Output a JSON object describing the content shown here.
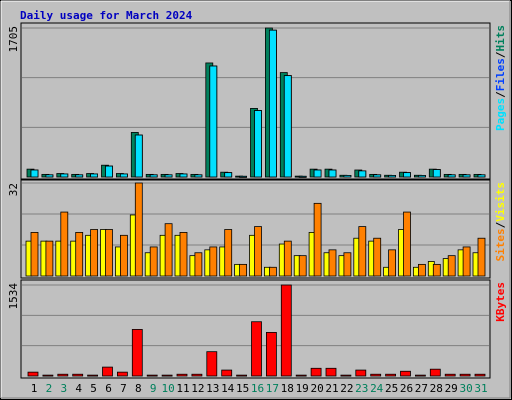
{
  "title": "Daily usage for March 2024",
  "legend_separator": "/",
  "chart_data": [
    {
      "type": "bar",
      "series": [
        {
          "name": "Hits",
          "color": "#00805c",
          "values": [
            90,
            30,
            40,
            30,
            40,
            135,
            40,
            510,
            30,
            30,
            40,
            30,
            1305,
            55,
            10,
            785,
            1705,
            1195,
            10,
            90,
            90,
            20,
            80,
            30,
            20,
            55,
            20,
            90,
            30,
            30,
            30
          ]
        },
        {
          "name": "Files",
          "color": "#0040ff",
          "values": [
            80,
            25,
            35,
            25,
            35,
            125,
            35,
            480,
            25,
            25,
            35,
            25,
            1270,
            50,
            8,
            760,
            1680,
            1160,
            8,
            80,
            80,
            18,
            70,
            25,
            18,
            50,
            18,
            85,
            25,
            25,
            25
          ]
        },
        {
          "name": "Pages",
          "color": "#00e0ff",
          "values": [
            80,
            25,
            35,
            25,
            35,
            125,
            35,
            480,
            25,
            25,
            35,
            25,
            1270,
            50,
            8,
            760,
            1680,
            1160,
            8,
            80,
            80,
            18,
            70,
            25,
            18,
            50,
            18,
            85,
            25,
            25,
            25
          ]
        }
      ],
      "ylim": [
        0,
        1705
      ],
      "yticks": [
        1705
      ],
      "grid_lines": 3
    },
    {
      "type": "bar",
      "series": [
        {
          "name": "Visits",
          "color": "#ffff00",
          "values": [
            12,
            12,
            12,
            12,
            14,
            16,
            10,
            21,
            8,
            14,
            14,
            7,
            9,
            10,
            4,
            14,
            3,
            11,
            7,
            15,
            8,
            7,
            13,
            12,
            3,
            16,
            3,
            5,
            6,
            9,
            8
          ]
        },
        {
          "name": "Sites",
          "color": "#ff8000",
          "values": [
            15,
            12,
            22,
            15,
            16,
            16,
            14,
            32,
            10,
            18,
            15,
            8,
            10,
            16,
            4,
            17,
            3,
            12,
            7,
            25,
            9,
            8,
            17,
            13,
            9,
            22,
            4,
            4,
            7,
            10,
            13
          ]
        }
      ],
      "ylim": [
        0,
        32
      ],
      "yticks": [
        32
      ],
      "grid_lines": 3
    },
    {
      "type": "bar",
      "categories": [
        "1",
        "2",
        "3",
        "4",
        "5",
        "6",
        "7",
        "8",
        "9",
        "10",
        "11",
        "12",
        "13",
        "14",
        "15",
        "16",
        "17",
        "18",
        "19",
        "20",
        "21",
        "22",
        "23",
        "24",
        "25",
        "26",
        "27",
        "28",
        "29",
        "30",
        "31"
      ],
      "category_colors": [
        "#000000",
        "#00805c",
        "#00805c",
        "#000000",
        "#000000",
        "#000000",
        "#000000",
        "#000000",
        "#00805c",
        "#00805c",
        "#000000",
        "#000000",
        "#000000",
        "#000000",
        "#000000",
        "#00805c",
        "#00805c",
        "#000000",
        "#000000",
        "#000000",
        "#000000",
        "#000000",
        "#00805c",
        "#00805c",
        "#000000",
        "#000000",
        "#000000",
        "#000000",
        "#000000",
        "#00805c",
        "#00805c"
      ],
      "series": [
        {
          "name": "KBytes",
          "color": "#ff0000",
          "values": [
            65,
            15,
            30,
            30,
            15,
            150,
            65,
            785,
            15,
            15,
            30,
            30,
            410,
            100,
            15,
            915,
            735,
            1534,
            15,
            130,
            130,
            15,
            100,
            30,
            30,
            80,
            15,
            115,
            30,
            30,
            30
          ]
        }
      ],
      "ylim": [
        0,
        1534
      ],
      "yticks": [
        1534
      ],
      "grid_lines": 3
    }
  ]
}
